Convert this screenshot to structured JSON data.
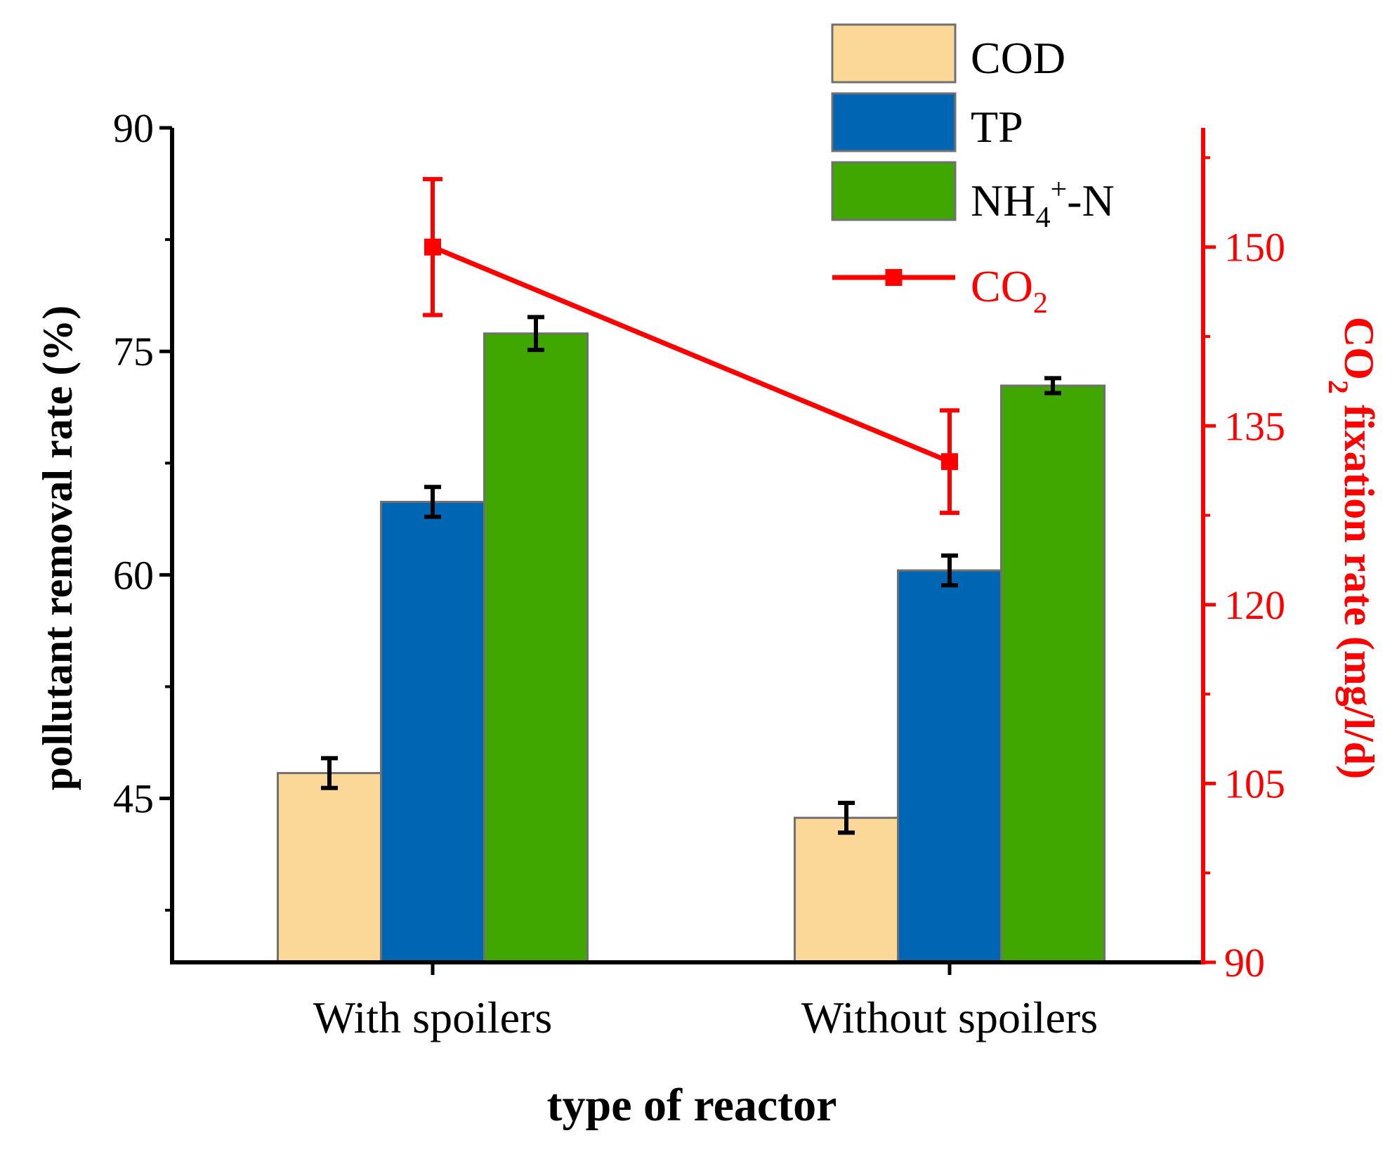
{
  "chart_data": {
    "type": "bar",
    "categories": [
      "With spoilers",
      "Without spoilers"
    ],
    "xlabel": "type of reactor",
    "ylabel": "pollutant removal rate (%)",
    "ylim": [
      34,
      90
    ],
    "yticks": [
      45,
      60,
      75,
      90
    ],
    "series": [
      {
        "name": "COD",
        "color": "#FBD898",
        "values": [
          46.7,
          43.7
        ],
        "errors": [
          1.0,
          1.0
        ]
      },
      {
        "name": "TP",
        "color": "#0066B3",
        "values": [
          64.9,
          60.3
        ],
        "errors": [
          1.0,
          1.0
        ]
      },
      {
        "name": "NH4+-N",
        "color": "#40A600",
        "values": [
          76.2,
          72.7
        ],
        "errors": [
          1.1,
          0.5
        ]
      }
    ],
    "line_series": {
      "name": "CO2",
      "color": "#FF0000",
      "values": [
        150.0,
        132.0
      ],
      "errors": [
        5.7,
        4.3
      ]
    },
    "y2label": "CO2 fixation rate (mg/l/d)",
    "y2lim": [
      90,
      160
    ],
    "y2ticks": [
      90,
      105,
      120,
      135,
      150
    ],
    "legend": {
      "position": "top-right",
      "entries": [
        {
          "main": "COD",
          "sub": "",
          "sup": "",
          "tail": ""
        },
        {
          "main": "TP",
          "sub": "",
          "sup": "",
          "tail": ""
        },
        {
          "main": "NH",
          "sub": "4",
          "sup": "+",
          "tail": "-N"
        },
        {
          "main": "CO",
          "sub": "2",
          "sup": "",
          "tail": ""
        }
      ]
    }
  }
}
